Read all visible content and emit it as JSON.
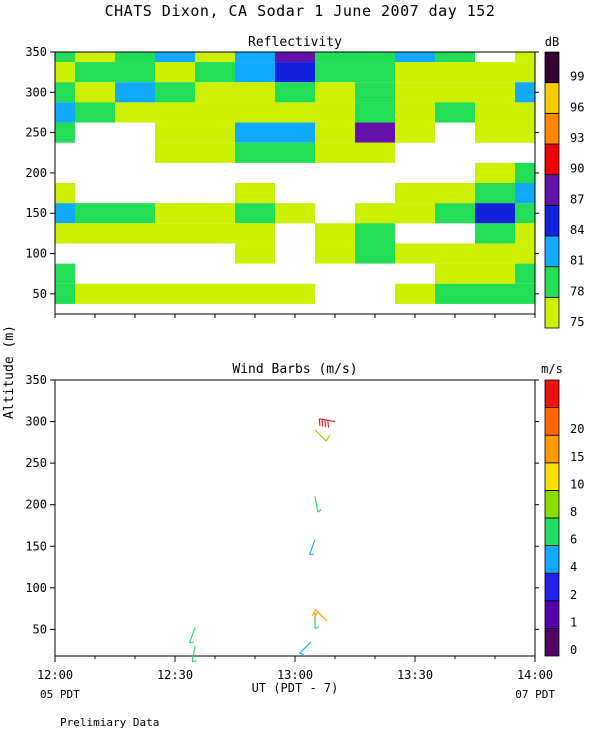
{
  "title": "CHATS Dixon, CA  Sodar    1 June 2007  day 152",
  "y_axis_label": "Altitude (m)",
  "x_axis_label": "UT  (PDT - 7)",
  "footnote": "Prelimiary Data",
  "corner_labels": {
    "left": "05 PDT",
    "right": "07 PDT"
  },
  "chart_data": [
    {
      "type": "heatmap",
      "title": "Reflectivity",
      "colorbar_unit": "dB",
      "ylim": [
        25,
        350
      ],
      "yticks": [
        50,
        100,
        150,
        200,
        250,
        300,
        350
      ],
      "xlim": [
        "12:00",
        "14:00"
      ],
      "levels": [
        75,
        78,
        81,
        84,
        87,
        90,
        93,
        96,
        99
      ],
      "level_colors": [
        "#ccf000",
        "#22dd55",
        "#11aaff",
        "#1122dd",
        "#6611aa",
        "#ee0000",
        "#ff8800",
        "#ffcc00",
        "#330033"
      ],
      "cols": [
        "12:00",
        "12:10",
        "12:20",
        "12:30",
        "12:40",
        "12:50",
        "13:00",
        "13:10",
        "13:20",
        "13:30",
        "13:40",
        "13:50",
        "14:00"
      ],
      "rows": [
        350,
        325,
        300,
        275,
        250,
        225,
        200,
        175,
        150,
        125,
        100,
        75,
        50
      ],
      "values": [
        [
          78,
          76,
          80,
          81,
          76,
          81,
          87,
          78,
          78,
          81,
          79,
          74,
          76
        ],
        [
          77,
          78,
          80,
          76,
          79,
          81,
          84,
          79,
          80,
          76,
          77,
          75,
          76
        ],
        [
          79,
          76,
          83,
          80,
          77,
          77,
          80,
          76,
          80,
          76,
          75,
          76,
          83
        ],
        [
          81,
          79,
          77,
          76,
          76,
          76,
          77,
          77,
          78,
          76,
          78,
          76,
          77
        ],
        [
          79,
          74,
          74,
          75,
          77,
          82,
          83,
          77,
          88,
          75,
          74,
          75,
          76
        ],
        [
          74,
          73,
          72,
          75,
          75,
          78,
          78,
          75,
          75,
          74,
          74,
          73,
          74
        ],
        [
          74,
          73,
          74,
          73,
          73,
          74,
          73,
          73,
          73,
          73,
          74,
          75,
          79
        ],
        [
          76,
          74,
          73,
          73,
          73,
          76,
          72,
          72,
          74,
          75,
          76,
          79,
          82
        ],
        [
          81,
          79,
          78,
          77,
          75,
          78,
          76,
          73,
          76,
          76,
          80,
          86,
          79
        ],
        [
          77,
          76,
          77,
          76,
          75,
          76,
          73,
          76,
          78,
          73,
          74,
          78,
          77
        ],
        [
          74,
          74,
          73,
          74,
          74,
          75,
          73,
          75,
          78,
          76,
          75,
          76,
          75
        ],
        [
          78,
          74,
          73,
          73,
          73,
          74,
          74,
          74,
          74,
          73,
          76,
          77,
          78
        ],
        [
          78,
          76,
          76,
          76,
          77,
          76,
          76,
          74,
          74,
          76,
          78,
          79,
          79
        ]
      ]
    },
    {
      "type": "scatter",
      "title": "Wind Barbs (m/s)",
      "colorbar_unit": "m/s",
      "ylim": [
        18,
        350
      ],
      "yticks": [
        50,
        100,
        150,
        200,
        250,
        300,
        350
      ],
      "xlim": [
        "12:00",
        "14:00"
      ],
      "xticks": [
        "12:00",
        "12:30",
        "13:00",
        "13:30",
        "14:00"
      ],
      "speed_levels": [
        0,
        1,
        2,
        4,
        6,
        8,
        10,
        15,
        20
      ],
      "speed_colors": [
        "#550066",
        "#5500aa",
        "#2222ee",
        "#11aaff",
        "#22dd66",
        "#88dd00",
        "#ffdd00",
        "#ff9900",
        "#ff6600",
        "#ee1111"
      ],
      "barbs": [
        {
          "time": "13:10",
          "altitude": 300,
          "speed": 21,
          "direction": 280
        },
        {
          "time": "13:05",
          "altitude": 290,
          "speed": 6,
          "direction": 135
        },
        {
          "time": "13:05",
          "altitude": 210,
          "speed": 4,
          "direction": 170
        },
        {
          "time": "13:05",
          "altitude": 158,
          "speed": 3,
          "direction": 200
        },
        {
          "time": "13:05",
          "altitude": 70,
          "speed": 4,
          "direction": 180
        },
        {
          "time": "13:08",
          "altitude": 60,
          "speed": 12,
          "direction": 315
        },
        {
          "time": "13:04",
          "altitude": 35,
          "speed": 3,
          "direction": 225
        },
        {
          "time": "12:35",
          "altitude": 52,
          "speed": 4,
          "direction": 200
        },
        {
          "time": "12:35",
          "altitude": 30,
          "speed": 4,
          "direction": 190
        }
      ]
    }
  ]
}
